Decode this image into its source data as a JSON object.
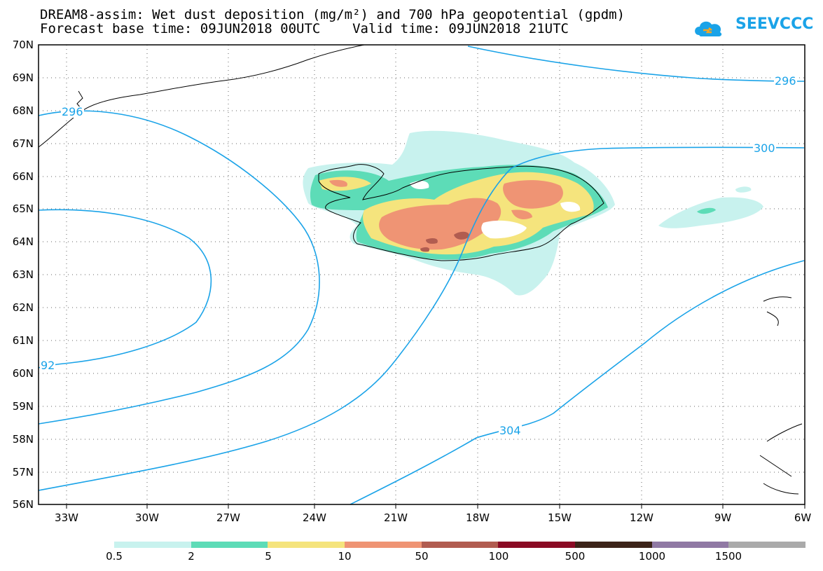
{
  "title_line1": "DREAM8-assim: Wet dust deposition (mg/m²) and 700 hPa geopotential (gpdm)",
  "title_line2": "Forecast base time: 09JUN2018 00UTC    Valid time: 09JUN2018 21UTC",
  "logo_text": "SEEVCCC",
  "lat_labels": [
    "70N",
    "69N",
    "68N",
    "67N",
    "66N",
    "65N",
    "64N",
    "63N",
    "62N",
    "61N",
    "60N",
    "59N",
    "58N",
    "57N",
    "56N"
  ],
  "lon_labels": [
    "33W",
    "30W",
    "27W",
    "24W",
    "21W",
    "18W",
    "15W",
    "12W",
    "9W",
    "6W"
  ],
  "contour_labels": {
    "c296_left": "296",
    "c296_right": "296",
    "c300": "300",
    "c292": "92",
    "c304": "304"
  },
  "colorbar": {
    "colors": [
      "#c8f2ee",
      "#5ddcb7",
      "#f5e47d",
      "#ef9474",
      "#b15c50",
      "#8a0a24",
      "#3c2318",
      "#9079a4",
      "#aaaaaa"
    ],
    "labels": [
      "0.5",
      "2",
      "5",
      "10",
      "50",
      "100",
      "500",
      "1000",
      "1500"
    ]
  }
}
